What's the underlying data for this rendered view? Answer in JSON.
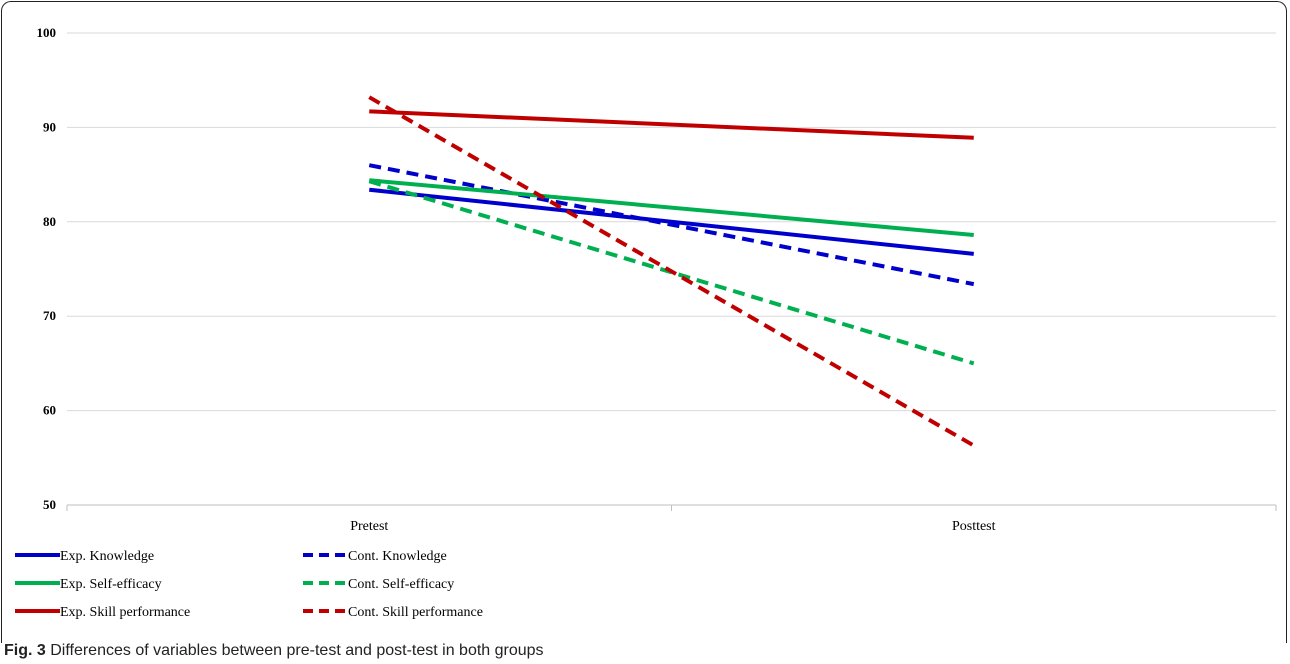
{
  "caption": {
    "label": "Fig. 3",
    "text": "Differences of variables between pre-test and post-test in both groups"
  },
  "chart_data": {
    "type": "line",
    "title": "",
    "xlabel": "",
    "ylabel": "",
    "categories": [
      "Pretest",
      "Posttest"
    ],
    "ylim": [
      50,
      100
    ],
    "yticks": [
      50,
      60,
      70,
      80,
      90,
      100
    ],
    "grid": "horizontal",
    "legend_position": "bottom-left",
    "series": [
      {
        "name": "Exp. Knowledge",
        "values": [
          83.4,
          76.6
        ],
        "color": "#0000cc",
        "dash": "solid"
      },
      {
        "name": "Cont. Knowledge",
        "values": [
          86.0,
          73.4
        ],
        "color": "#0000cc",
        "dash": "dashed"
      },
      {
        "name": "Exp. Self-efficacy",
        "values": [
          84.4,
          78.6
        ],
        "color": "#00b050",
        "dash": "solid"
      },
      {
        "name": "Cont. Self-efficacy",
        "values": [
          84.3,
          65.0
        ],
        "color": "#00b050",
        "dash": "dashed"
      },
      {
        "name": "Exp. Skill performance",
        "values": [
          91.7,
          88.9
        ],
        "color": "#c00000",
        "dash": "solid"
      },
      {
        "name": "Cont. Skill performance",
        "values": [
          93.2,
          56.3
        ],
        "color": "#c00000",
        "dash": "dashed"
      }
    ]
  }
}
